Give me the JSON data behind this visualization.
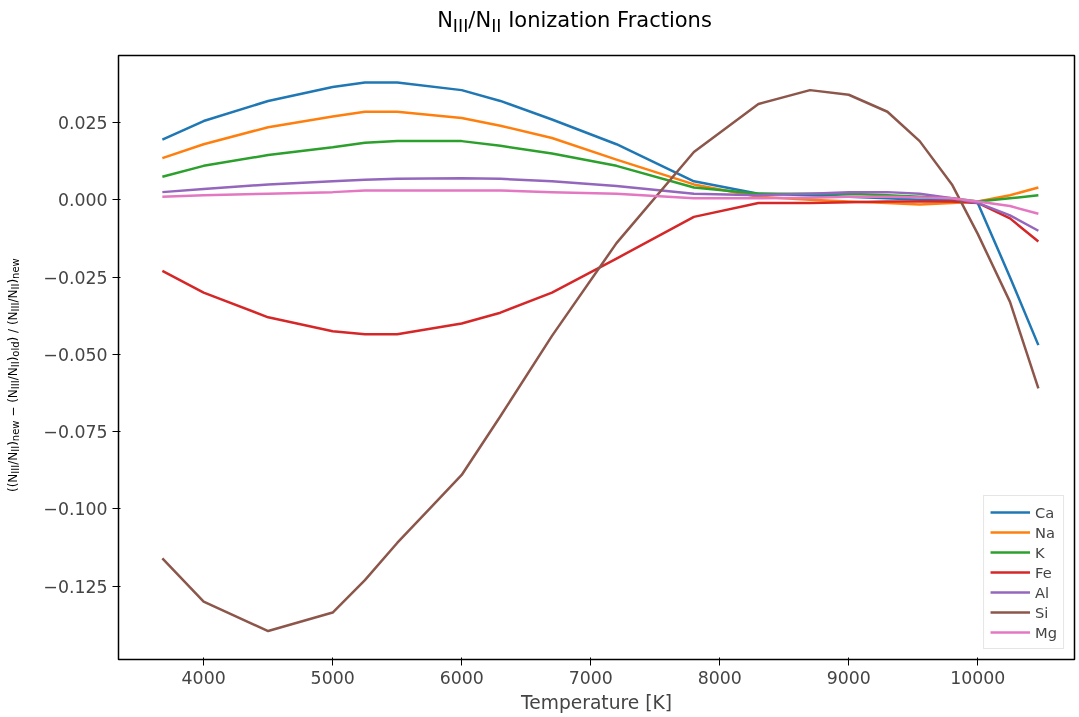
{
  "chart_data": {
    "type": "line",
    "title": "N$_{III}$/N$_{II}$ Ionization Fractions",
    "xlabel": "Temperature [K]",
    "ylabel": "((N$_{III}$/N$_{II}$)$_{new}$ − (N$_{III}$/N$_{II}$)$_{old}$) / (N$_{III}$/N$_{II}$)$_{new}$",
    "x": [
      3680,
      4000,
      4500,
      5000,
      5250,
      5500,
      6000,
      6300,
      6700,
      7200,
      7800,
      8300,
      8700,
      9000,
      9300,
      9550,
      9800,
      10000,
      10250,
      10470
    ],
    "series": [
      {
        "name": "Ca",
        "color": "#1f77b4",
        "values": [
          0.0195,
          0.0255,
          0.032,
          0.0365,
          0.038,
          0.038,
          0.0355,
          0.032,
          0.026,
          0.018,
          0.006,
          0.002,
          0.0015,
          0.001,
          0.0005,
          0.0,
          0.0,
          -0.001,
          -0.025,
          -0.047
        ]
      },
      {
        "name": "Na",
        "color": "#ff7f0e",
        "values": [
          0.0135,
          0.018,
          0.0235,
          0.027,
          0.0285,
          0.0285,
          0.0265,
          0.024,
          0.02,
          0.013,
          0.005,
          0.001,
          0.0,
          -0.0005,
          -0.001,
          -0.0015,
          -0.001,
          -0.0005,
          0.0015,
          0.004
        ]
      },
      {
        "name": "K",
        "color": "#2ca02c",
        "values": [
          0.0075,
          0.011,
          0.0145,
          0.017,
          0.0185,
          0.019,
          0.019,
          0.0175,
          0.015,
          0.011,
          0.004,
          0.002,
          0.002,
          0.002,
          0.0015,
          0.001,
          0.0005,
          -0.0005,
          0.0005,
          0.0015
        ]
      },
      {
        "name": "Fe",
        "color": "#d62728",
        "values": [
          -0.023,
          -0.03,
          -0.038,
          -0.0425,
          -0.0435,
          -0.0435,
          -0.04,
          -0.0365,
          -0.03,
          -0.019,
          -0.0055,
          -0.001,
          -0.001,
          -0.0008,
          -0.0005,
          -0.0005,
          -0.0005,
          -0.001,
          -0.006,
          -0.0135
        ]
      },
      {
        "name": "Al",
        "color": "#9467bd",
        "values": [
          0.0025,
          0.0035,
          0.005,
          0.006,
          0.0065,
          0.0068,
          0.007,
          0.0068,
          0.006,
          0.0045,
          0.002,
          0.0015,
          0.002,
          0.0025,
          0.0025,
          0.002,
          0.0005,
          -0.001,
          -0.005,
          -0.01
        ]
      },
      {
        "name": "Si",
        "color": "#8c564b",
        "values": [
          -0.116,
          -0.13,
          -0.1395,
          -0.1335,
          -0.123,
          -0.111,
          -0.089,
          -0.07,
          -0.044,
          -0.014,
          0.0155,
          0.031,
          0.0355,
          0.034,
          0.0285,
          0.019,
          0.005,
          -0.011,
          -0.033,
          -0.061
        ]
      },
      {
        "name": "Mg",
        "color": "#e377c2",
        "values": [
          0.001,
          0.0015,
          0.002,
          0.0025,
          0.003,
          0.003,
          0.003,
          0.003,
          0.0025,
          0.002,
          0.0005,
          0.0005,
          0.0007,
          0.001,
          0.001,
          0.0008,
          0.0005,
          -0.0005,
          -0.002,
          -0.0045
        ]
      }
    ],
    "xlim": [
      3340,
      10750
    ],
    "ylim": [
      -0.1487,
      0.0467
    ],
    "xticks": [
      4000,
      5000,
      6000,
      7000,
      8000,
      9000,
      10000
    ],
    "yticks": [
      {
        "value": -0.125,
        "label": "−0.125"
      },
      {
        "value": -0.1,
        "label": "−0.100"
      },
      {
        "value": -0.075,
        "label": "−0.075"
      },
      {
        "value": -0.05,
        "label": "−0.050"
      },
      {
        "value": -0.025,
        "label": "−0.025"
      },
      {
        "value": 0.0,
        "label": "0.000"
      },
      {
        "value": 0.025,
        "label": "0.025"
      }
    ],
    "legend": "bottom right",
    "grid": false,
    "line_style": "solid"
  }
}
